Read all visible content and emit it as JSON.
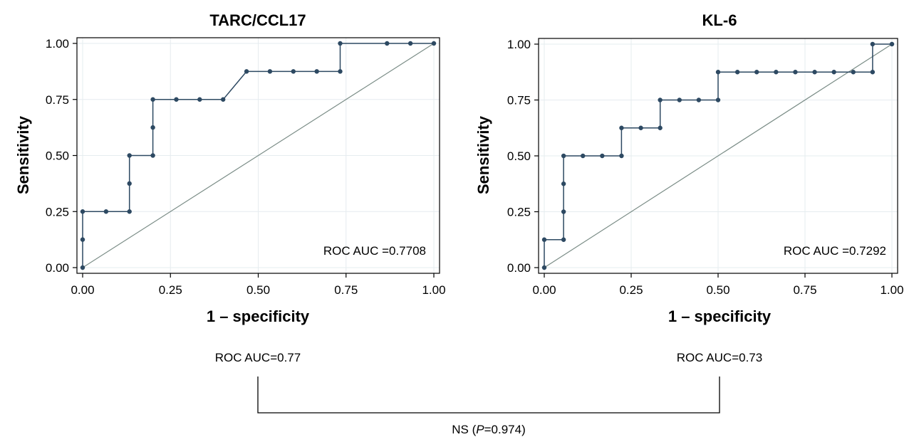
{
  "colors": {
    "curve": "#2d4962",
    "diagonal": "#7a8c86",
    "grid": "#e6ecef",
    "frame": "#000000"
  },
  "chart_data": [
    {
      "type": "line",
      "title": "TARC/CCL17",
      "xlabel": "1 – specificity",
      "ylabel": "Sensitivity",
      "xlim": [
        0,
        1
      ],
      "ylim": [
        0,
        1
      ],
      "xticks": [
        "0.00",
        "0.25",
        "0.50",
        "0.75",
        "1.00"
      ],
      "yticks": [
        "0.00",
        "0.25",
        "0.50",
        "0.75",
        "1.00"
      ],
      "grid": true,
      "annotation": "ROC AUC =0.7708",
      "reference_line": [
        [
          0,
          0
        ],
        [
          1,
          1
        ]
      ],
      "x": [
        0,
        0,
        0,
        0.0667,
        0.1333,
        0.1333,
        0.1333,
        0.2,
        0.2,
        0.2,
        0.2667,
        0.3333,
        0.4,
        0.4667,
        0.5333,
        0.6,
        0.6667,
        0.7333,
        0.7333,
        0.8667,
        0.9333,
        1
      ],
      "y": [
        0,
        0.125,
        0.25,
        0.25,
        0.25,
        0.375,
        0.5,
        0.5,
        0.625,
        0.75,
        0.75,
        0.75,
        0.75,
        0.875,
        0.875,
        0.875,
        0.875,
        0.875,
        1,
        1,
        1,
        1
      ]
    },
    {
      "type": "line",
      "title": "KL-6",
      "xlabel": "1 – specificity",
      "ylabel": "Sensitivity",
      "xlim": [
        0,
        1
      ],
      "ylim": [
        0,
        1
      ],
      "xticks": [
        "0.00",
        "0.25",
        "0.50",
        "0.75",
        "1.00"
      ],
      "yticks": [
        "0.00",
        "0.25",
        "0.50",
        "0.75",
        "1.00"
      ],
      "grid": true,
      "annotation": "ROC AUC =0.7292",
      "reference_line": [
        [
          0,
          0
        ],
        [
          1,
          1
        ]
      ],
      "x": [
        0,
        0,
        0.0556,
        0.0556,
        0.0556,
        0.0556,
        0.1111,
        0.1667,
        0.2222,
        0.2222,
        0.2778,
        0.3333,
        0.3333,
        0.3889,
        0.4444,
        0.5,
        0.5,
        0.5556,
        0.6111,
        0.6667,
        0.7222,
        0.7778,
        0.8333,
        0.8889,
        0.9444,
        0.9444,
        1
      ],
      "y": [
        0,
        0.125,
        0.125,
        0.25,
        0.375,
        0.5,
        0.5,
        0.5,
        0.5,
        0.625,
        0.625,
        0.625,
        0.75,
        0.75,
        0.75,
        0.75,
        0.875,
        0.875,
        0.875,
        0.875,
        0.875,
        0.875,
        0.875,
        0.875,
        0.875,
        1,
        1
      ]
    }
  ],
  "comparison": {
    "left_label": "ROC AUC=0.77",
    "right_label": "ROC AUC=0.73",
    "result_prefix": "NS (",
    "result_p": "P",
    "result_suffix": "=0.974)"
  }
}
